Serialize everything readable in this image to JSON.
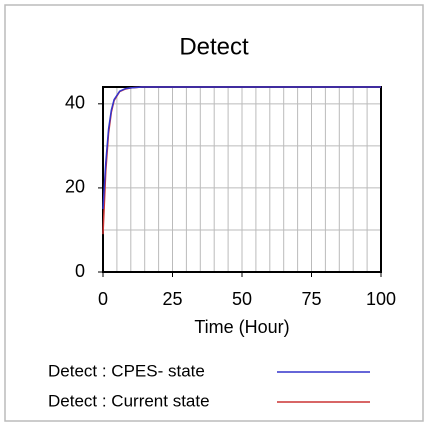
{
  "chart_data": {
    "type": "line",
    "title": "Detect",
    "xlabel": "Time (Hour)",
    "x": [
      0,
      1,
      2,
      3,
      4,
      6,
      8,
      10,
      14,
      20,
      40,
      60,
      80,
      100
    ],
    "series": [
      {
        "name": "Detect : CPES- state",
        "color": "#3333cc",
        "values": [
          15,
          26,
          34,
          38.5,
          41,
          43,
          43.6,
          43.8,
          44,
          44,
          44,
          44,
          44,
          44
        ]
      },
      {
        "name": "Detect : Current state",
        "color": "#cc3333",
        "values": [
          9,
          24,
          33,
          38,
          40.8,
          42.9,
          43.5,
          43.8,
          44,
          44,
          44,
          44,
          44,
          44
        ]
      }
    ],
    "xlim": [
      0,
      100
    ],
    "xticks": [
      0,
      25,
      50,
      75,
      100
    ],
    "ylim": [
      0,
      44
    ],
    "yticks": [
      0,
      20,
      40
    ],
    "grid": true,
    "xgrid_step": 5,
    "ygrid_step": 10
  }
}
